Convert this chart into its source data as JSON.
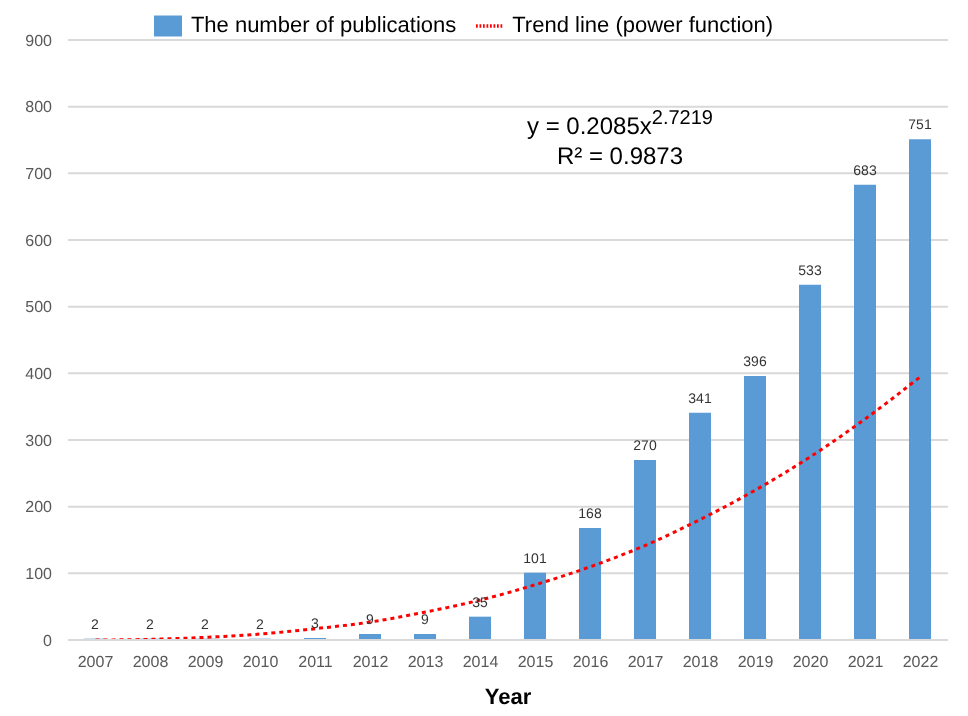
{
  "chart_data": {
    "type": "bar",
    "xlabel": "Year",
    "categories": [
      "2007",
      "2008",
      "2009",
      "2010",
      "2011",
      "2012",
      "2013",
      "2014",
      "2015",
      "2016",
      "2017",
      "2018",
      "2019",
      "2020",
      "2021",
      "2022"
    ],
    "series": [
      {
        "name": "The number of publications",
        "color": "#5b9bd5",
        "values": [
          2,
          2,
          2,
          2,
          3,
          9,
          9,
          35,
          101,
          168,
          270,
          341,
          396,
          533,
          683,
          751
        ],
        "value_labels": [
          "2",
          "2",
          "2",
          "2",
          "3",
          "9",
          "9",
          "35",
          "101",
          "168",
          "270",
          "341",
          "396",
          "533",
          "683",
          "751"
        ]
      },
      {
        "name": "Trend line (power function)",
        "type": "line",
        "color": "#ff0000",
        "line_style": "dotted",
        "values": [
          0,
          1,
          4,
          9,
          17,
          27,
          42,
          60,
          83,
          110,
          142,
          181,
          225,
          275,
          332,
          395
        ]
      }
    ],
    "ylim": [
      0,
      900
    ],
    "yticks": [
      0,
      100,
      200,
      300,
      400,
      500,
      600,
      700,
      800,
      900
    ],
    "grid": "y",
    "legend": "top",
    "annotations": [
      "y = 0.2085x$^{2.7219}$",
      "R² = 0.9873"
    ]
  }
}
